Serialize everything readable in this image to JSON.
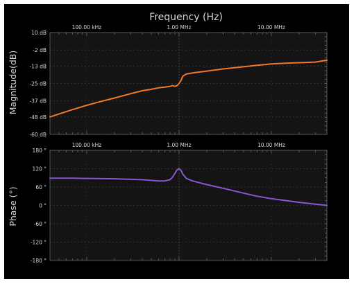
{
  "chart_data": [
    {
      "type": "line",
      "title": "Frequency (Hz)",
      "xlabel": "",
      "ylabel": "Magnitude(dB)",
      "x_scale": "log",
      "xlim": [
        40000,
        40000000
      ],
      "ylim": [
        -60,
        10
      ],
      "x_tick_labels": [
        {
          "value": 100000,
          "label": "100.00 kHz"
        },
        {
          "value": 1000000,
          "label": "1.00 MHz"
        },
        {
          "value": 10000000,
          "label": "10.00 MHz"
        }
      ],
      "y_ticks": [
        {
          "value": 10,
          "label": "10 dB"
        },
        {
          "value": -2,
          "label": "-2 dB"
        },
        {
          "value": -13,
          "label": "-13 dB"
        },
        {
          "value": -25,
          "label": "-25 dB"
        },
        {
          "value": -37,
          "label": "-37 dB"
        },
        {
          "value": -48,
          "label": "-48 dB"
        },
        {
          "value": -60,
          "label": "-60 dB"
        }
      ],
      "grid": true,
      "series": [
        {
          "color": "#f07a28",
          "x": [
            40000,
            50000,
            70000,
            100000,
            150000,
            200000,
            300000,
            400000,
            500000,
            600000,
            700000,
            800000,
            850000,
            900000,
            950000,
            1000000,
            1050000,
            1100000,
            1200000,
            1500000,
            2000000,
            3000000,
            5000000,
            7000000,
            10000000,
            15000000,
            20000000,
            30000000,
            40000000
          ],
          "y": [
            -48,
            -46,
            -43,
            -40,
            -37,
            -35,
            -32,
            -30,
            -29,
            -28,
            -27.5,
            -27,
            -26.5,
            -27,
            -26.5,
            -25,
            -23,
            -20,
            -18.5,
            -17.5,
            -16.5,
            -15,
            -13.5,
            -12.5,
            -11.5,
            -11,
            -10.7,
            -10.3,
            -9
          ]
        }
      ]
    },
    {
      "type": "line",
      "title": "",
      "xlabel": "",
      "ylabel": "Phase (°)",
      "x_scale": "log",
      "xlim": [
        40000,
        40000000
      ],
      "ylim": [
        -180,
        180
      ],
      "x_tick_labels": [
        {
          "value": 100000,
          "label": "100.00 kHz"
        },
        {
          "value": 1000000,
          "label": "1.00 MHz"
        },
        {
          "value": 10000000,
          "label": "10.00 MHz"
        }
      ],
      "y_ticks": [
        {
          "value": 180,
          "label": "180 °"
        },
        {
          "value": 120,
          "label": "120 °"
        },
        {
          "value": 60,
          "label": "60 °"
        },
        {
          "value": 0,
          "label": "0 °"
        },
        {
          "value": -60,
          "label": "-60 °"
        },
        {
          "value": -120,
          "label": "-120 °"
        },
        {
          "value": -180,
          "label": "-180 °"
        }
      ],
      "grid": true,
      "series": [
        {
          "color": "#8a55d6",
          "x": [
            40000,
            70000,
            100000,
            200000,
            400000,
            600000,
            700000,
            800000,
            850000,
            900000,
            950000,
            1000000,
            1050000,
            1100000,
            1200000,
            1400000,
            2000000,
            3000000,
            5000000,
            7000000,
            10000000,
            20000000,
            30000000,
            40000000
          ],
          "y": [
            89,
            89,
            88,
            87,
            84,
            80,
            80,
            84,
            92,
            104,
            116,
            120,
            115,
            102,
            88,
            80,
            68,
            56,
            40,
            30,
            22,
            10,
            4,
            0
          ]
        }
      ]
    }
  ]
}
